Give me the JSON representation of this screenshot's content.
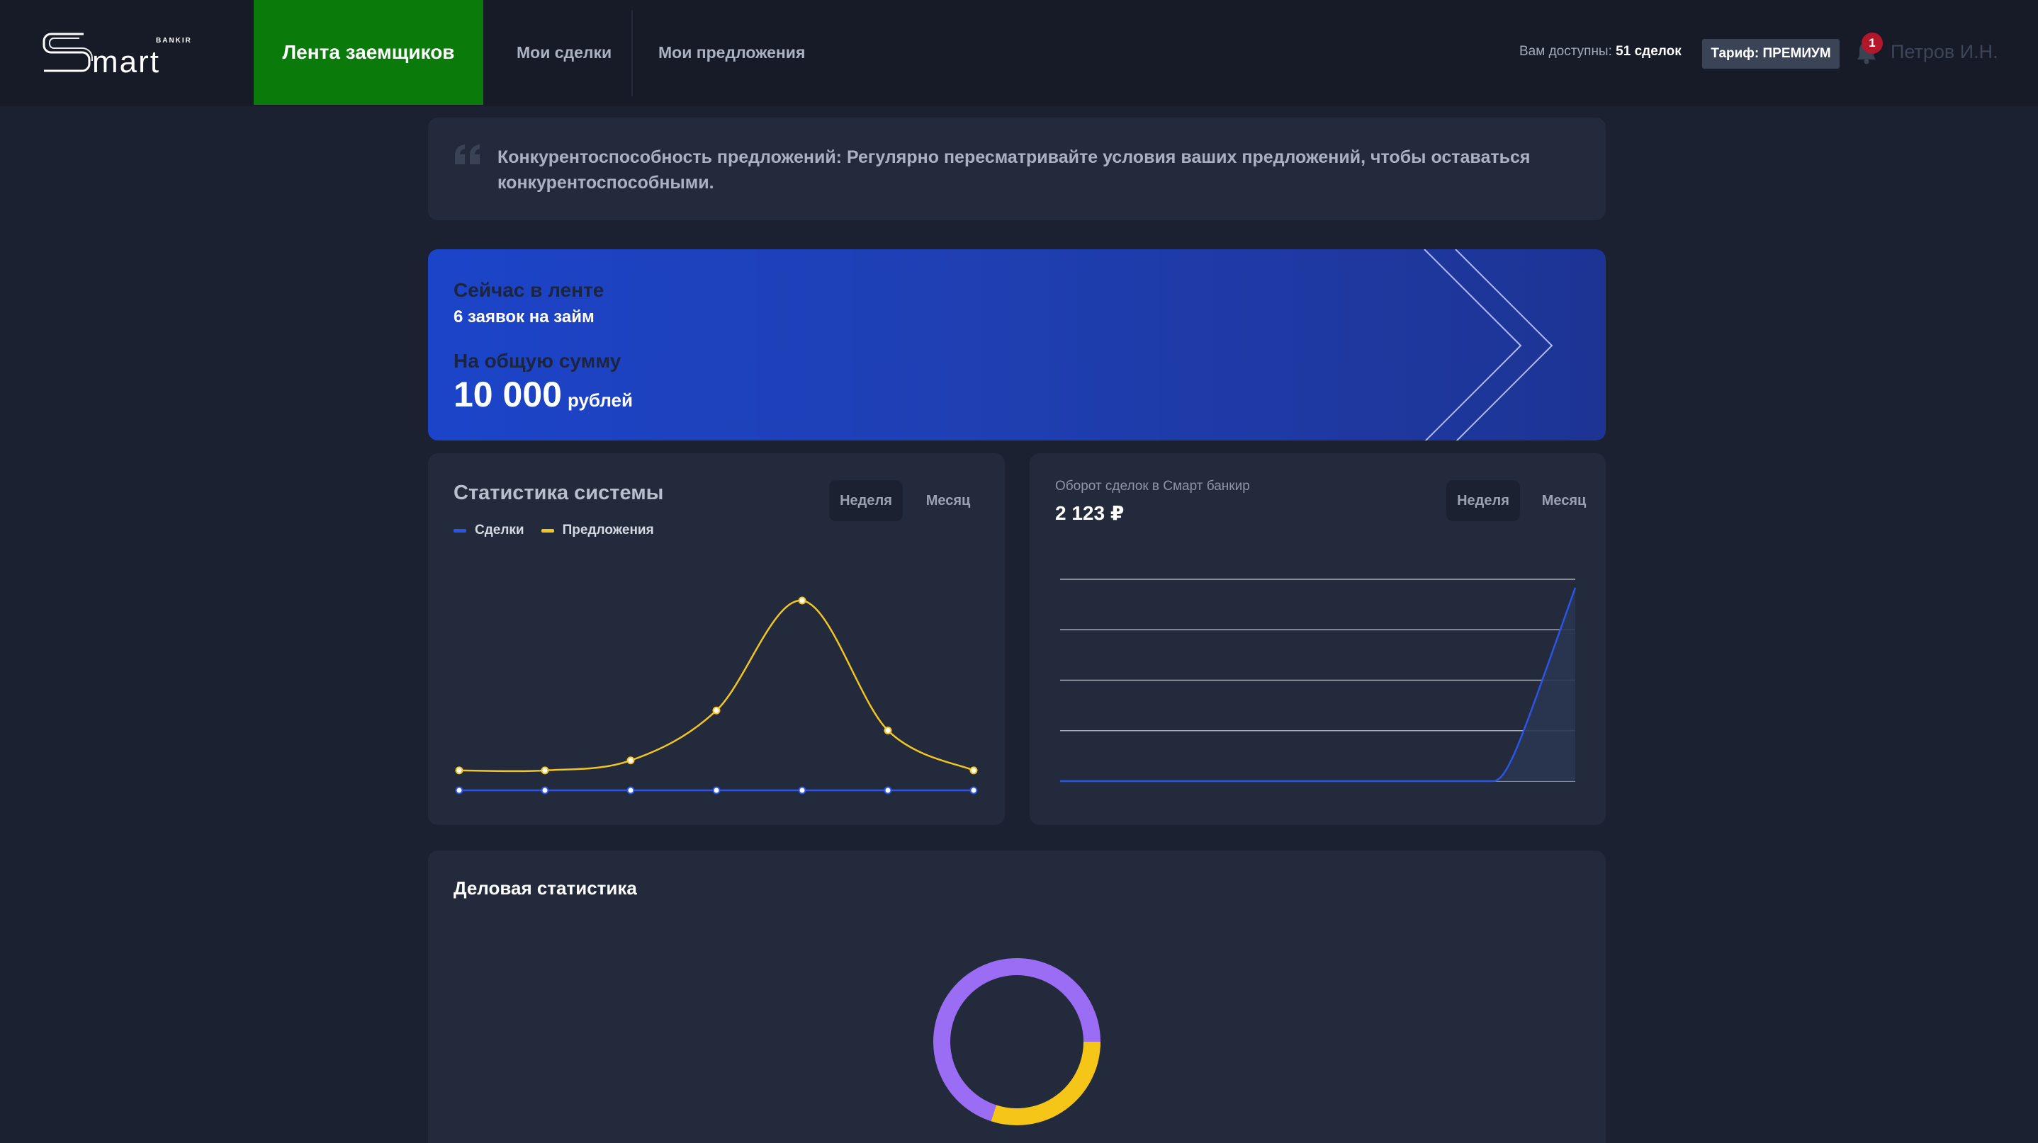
{
  "header": {
    "logo_text": "Smart",
    "logo_sub": "BANKIR",
    "nav": [
      {
        "label": "Лента заемщиков",
        "active": true
      },
      {
        "label": "Мои сделки",
        "active": false
      },
      {
        "label": "Мои предложения",
        "active": false
      }
    ],
    "available_label": "Вам доступны:",
    "available_value": "51 сделок",
    "tariff": "Тариф: ПРЕМИУМ",
    "notifications_count": "1",
    "user_name": "Петров И.Н."
  },
  "tip": {
    "text": "Конкурентоспособность предложений: Регулярно пересматривайте условия ваших предложений, чтобы оставаться конкурентоспособными."
  },
  "banner": {
    "now_label": "Сейчас в ленте",
    "requests": "6 заявок на займ",
    "sum_label": "На общую сумму",
    "amount": "10 000",
    "currency": "рублей"
  },
  "stats": {
    "title": "Статистика системы",
    "period_week": "Неделя",
    "period_month": "Месяц",
    "legend_deals": "Сделки",
    "legend_offers": "Предложения"
  },
  "turnover": {
    "label": "Оборот сделок в Смарт банкир",
    "value": "2 123 ₽",
    "period_week": "Неделя",
    "period_month": "Месяц"
  },
  "business": {
    "title": "Деловая статистика"
  },
  "colors": {
    "active_nav": "#0a7b0a",
    "deals": "#2b55e6",
    "offers": "#f2c521",
    "donut_purple": "#9b6df5",
    "donut_yellow": "#f5c518"
  },
  "chart_data": [
    {
      "type": "line",
      "series": [
        {
          "name": "Сделки",
          "values": [
            0,
            0,
            0,
            0,
            0,
            0,
            0
          ]
        },
        {
          "name": "Предложения",
          "values": [
            1,
            1,
            2,
            7,
            18,
            5,
            1
          ]
        }
      ],
      "x": [
        1,
        2,
        3,
        4,
        5,
        6,
        7
      ]
    },
    {
      "type": "area",
      "values": [
        0,
        0,
        0,
        0,
        0,
        0,
        0,
        0,
        0,
        2123
      ],
      "gridlines": 5
    },
    {
      "type": "pie",
      "slices": [
        {
          "name": "purple",
          "value": 70
        },
        {
          "name": "yellow",
          "value": 30
        }
      ]
    }
  ]
}
